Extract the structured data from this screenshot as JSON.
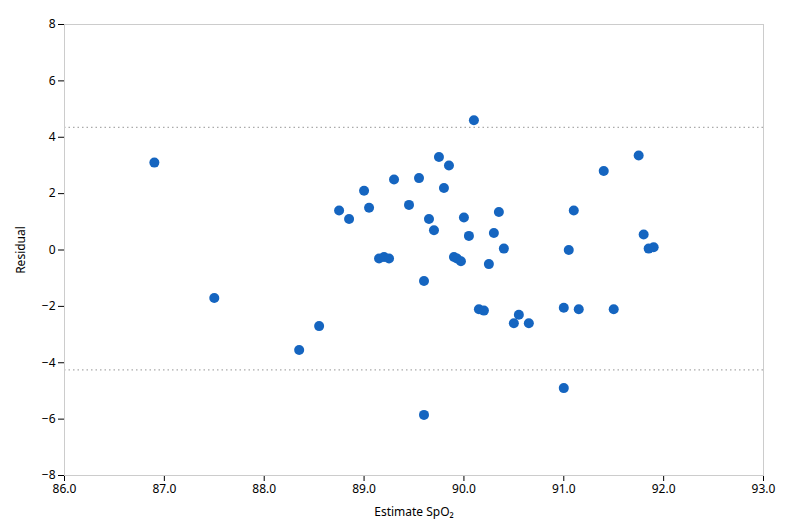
{
  "chart_data": {
    "type": "scatter",
    "xlabel": "Estimate SpO₂",
    "ylabel": "Residual",
    "x": [
      86.9,
      87.5,
      88.35,
      88.55,
      88.75,
      88.85,
      89.0,
      89.05,
      89.15,
      89.2,
      89.25,
      89.3,
      89.45,
      89.55,
      89.6,
      89.65,
      89.7,
      89.75,
      89.8,
      89.85,
      89.9,
      89.93,
      89.97,
      90.0,
      90.05,
      90.1,
      90.15,
      90.2,
      90.25,
      90.3,
      90.35,
      90.4,
      90.5,
      90.55,
      90.65,
      91.0,
      91.05,
      91.1,
      91.15,
      91.4,
      91.5,
      91.75,
      91.8,
      91.85,
      91.9,
      89.6,
      91.0
    ],
    "values": [
      3.1,
      -1.7,
      -3.55,
      -2.7,
      1.4,
      1.1,
      2.1,
      1.5,
      -0.3,
      -0.25,
      -0.3,
      2.5,
      1.6,
      2.55,
      -1.1,
      1.1,
      0.7,
      3.3,
      2.2,
      3.0,
      -0.25,
      -0.3,
      -0.4,
      1.15,
      0.5,
      4.6,
      -2.1,
      -2.15,
      -0.5,
      0.6,
      1.35,
      0.05,
      -2.6,
      -2.3,
      -2.6,
      -2.05,
      0.0,
      1.4,
      -2.1,
      2.8,
      -2.1,
      3.35,
      0.55,
      0.05,
      0.1,
      -5.85,
      -4.9
    ],
    "color": "#1565C0",
    "reference_lines": [
      {
        "value": 4.35,
        "color": "#aaaaaa",
        "line_style": "dotted"
      },
      {
        "value": -4.25,
        "color": "#aaaaaa",
        "line_style": "dotted"
      }
    ],
    "xlim": [
      86,
      93
    ],
    "ylim": [
      -8,
      8
    ],
    "xticks": [
      86,
      87,
      88,
      89,
      90,
      91,
      92,
      93
    ],
    "yticks": [
      -8,
      -6,
      -4,
      -2,
      0,
      2,
      4,
      6,
      8
    ],
    "grid": false
  }
}
